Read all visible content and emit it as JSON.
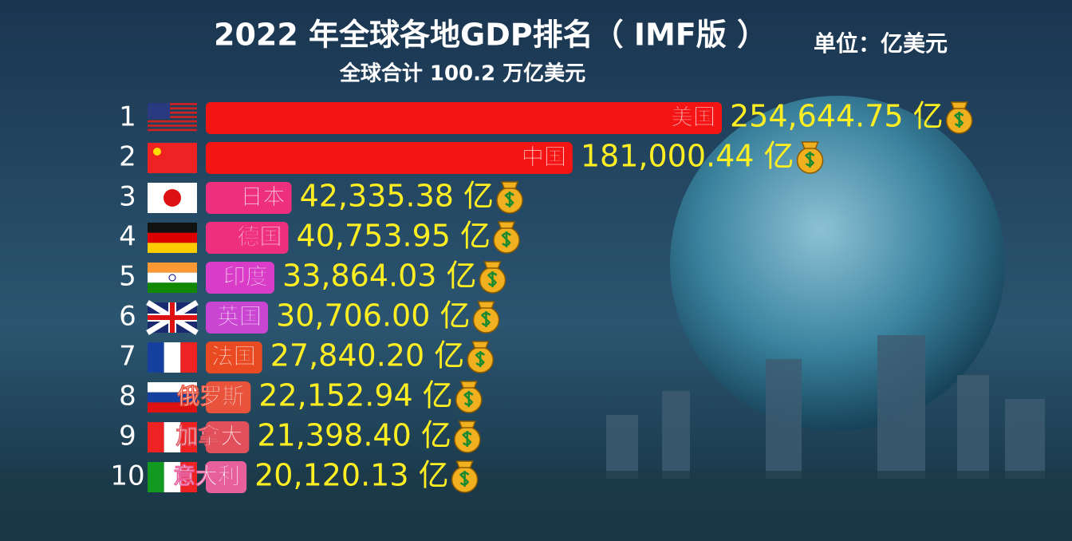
{
  "chart_data": {
    "type": "bar",
    "title": "2022 年全球各地GDP排名（ IMF版 ）",
    "unit": "单位：亿美元",
    "subtitle": "全球合计 100.2 万亿美元",
    "ranks": [
      1,
      2,
      3,
      4,
      5,
      6,
      7,
      8,
      9,
      10
    ],
    "categories": [
      "美国",
      "中国",
      "日本",
      "德国",
      "印度",
      "英国",
      "法国",
      "俄罗斯",
      "加拿大",
      "意大利"
    ],
    "values": [
      254644.75,
      181000.44,
      42335.38,
      40753.95,
      33864.03,
      30706.0,
      27840.2,
      22152.94,
      21398.4,
      20120.13
    ],
    "value_labels": [
      "254,644.75 亿",
      "181,000.44 亿",
      "42,335.38 亿",
      "40,753.95 亿",
      "33,864.03 亿",
      "30,706.00 亿",
      "27,840.20 亿",
      "22,152.94 亿",
      "21,398.40 亿",
      "20,120.13 亿"
    ],
    "colors": [
      "#f41414",
      "#f41414",
      "#ee2f7e",
      "#ee2f7e",
      "#d93cc6",
      "#c944d0",
      "#ea4a22",
      "#e9533c",
      "#e2505c",
      "#e7609c"
    ]
  }
}
